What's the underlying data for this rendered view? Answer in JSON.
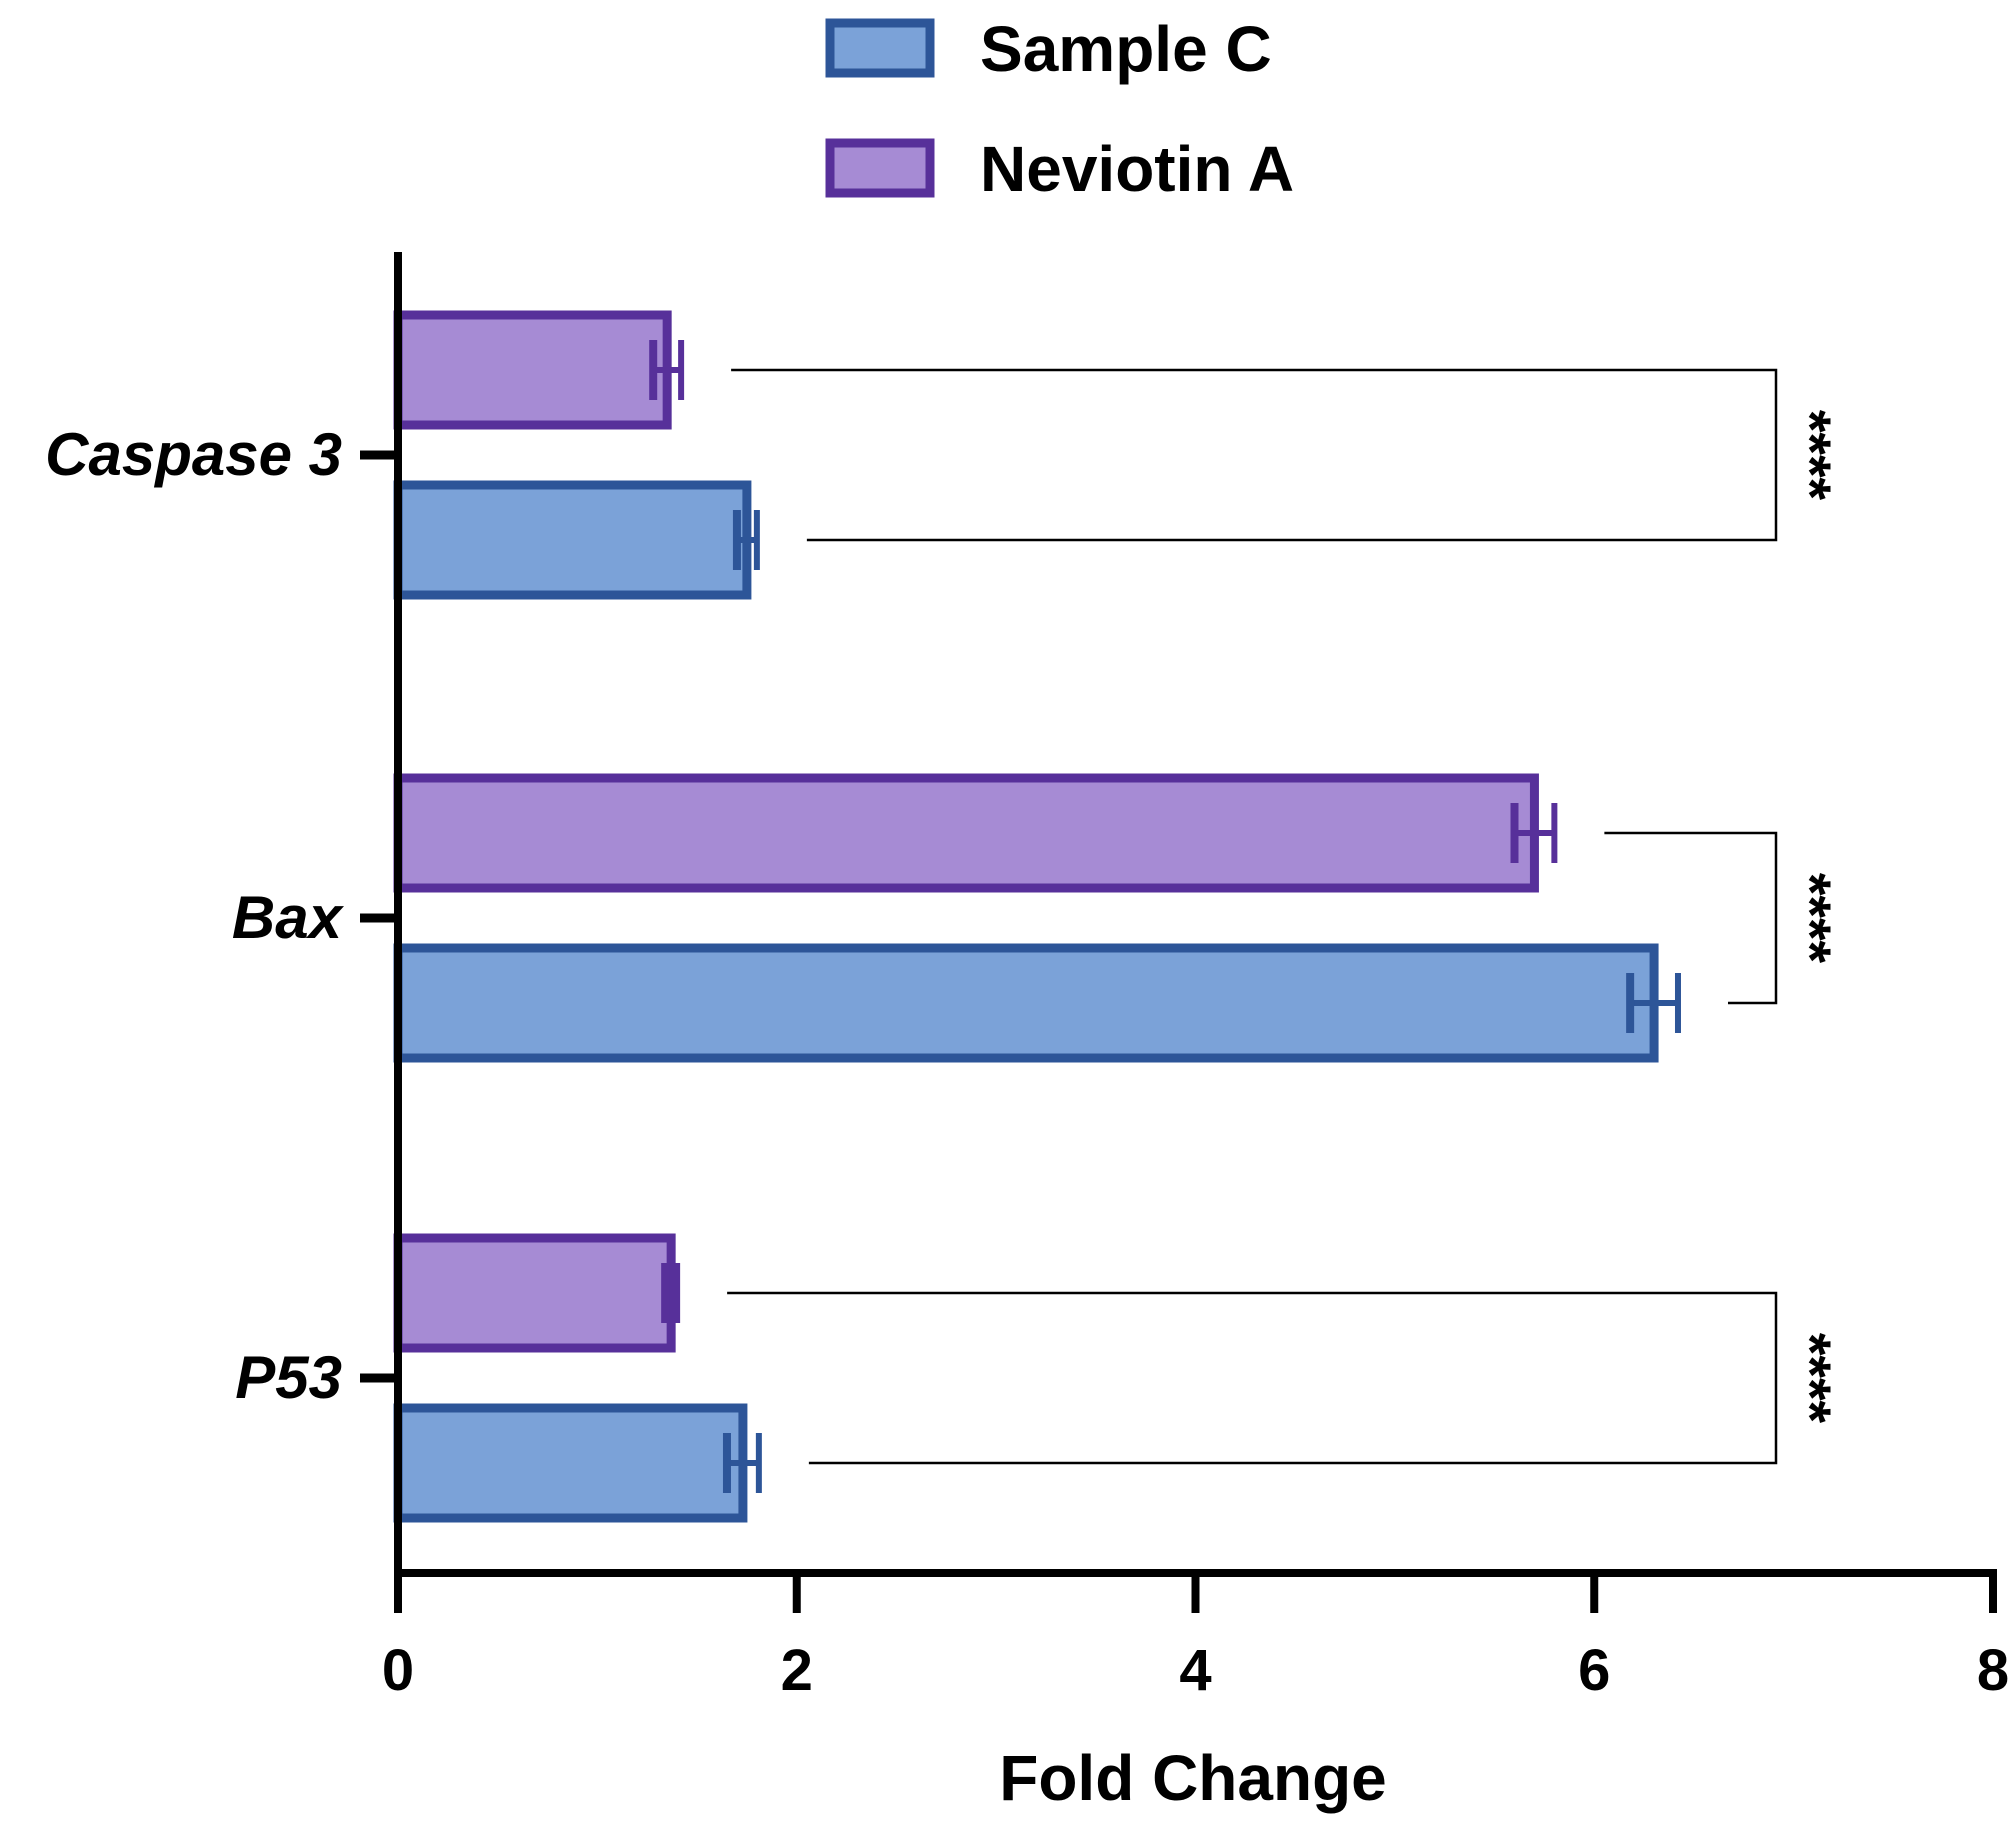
{
  "chart_data": {
    "type": "bar",
    "orientation": "horizontal",
    "categories": [
      "Caspase 3",
      "Bax",
      "P53"
    ],
    "series": [
      {
        "name": "Neviotin A",
        "values": [
          1.35,
          5.7,
          1.37
        ],
        "errors": [
          0.07,
          0.1,
          0.03
        ],
        "fill": "#A68BD4",
        "stroke": "#57309A"
      },
      {
        "name": "Sample C",
        "values": [
          1.75,
          6.3,
          1.73
        ],
        "errors": [
          0.05,
          0.12,
          0.08
        ],
        "fill": "#7BA2D8",
        "stroke": "#2D5598"
      }
    ],
    "legend": [
      "Sample C",
      "Neviotin A"
    ],
    "legend_position": "top-center",
    "xlabel": "Fold Change",
    "ylabel": "",
    "xlim": [
      0,
      8
    ],
    "xticks": [
      "0",
      "2",
      "4",
      "6",
      "8"
    ],
    "grid": false,
    "significance": [
      {
        "category": "Caspase 3",
        "label": "****"
      },
      {
        "category": "Bax",
        "label": "****"
      },
      {
        "category": "P53",
        "label": "****"
      }
    ]
  }
}
